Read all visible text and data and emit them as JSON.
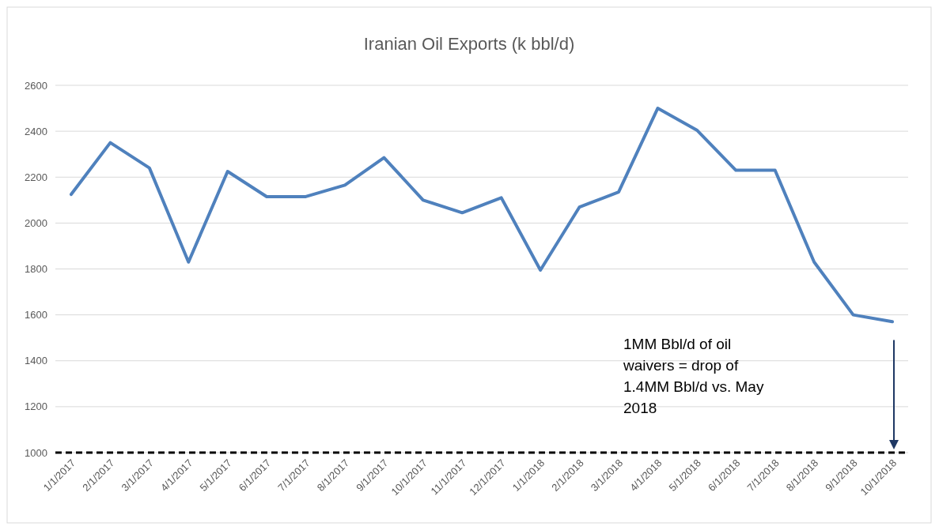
{
  "chart_data": {
    "type": "line",
    "title": "Iranian Oil Exports (k bbl/d)",
    "categories": [
      "1/1/2017",
      "2/1/2017",
      "3/1/2017",
      "4/1/2017",
      "5/1/2017",
      "6/1/2017",
      "7/1/2017",
      "8/1/2017",
      "9/1/2017",
      "10/1/2017",
      "11/1/2017",
      "12/1/2017",
      "1/1/2018",
      "2/1/2018",
      "3/1/2018",
      "4/1/2018",
      "5/1/2018",
      "6/1/2018",
      "7/1/2018",
      "8/1/2018",
      "9/1/2018",
      "10/1/2018"
    ],
    "series": [
      {
        "color": "#4f81bd",
        "values": [
          2125,
          2350,
          2240,
          1830,
          2225,
          2115,
          2115,
          2165,
          2285,
          2100,
          2045,
          2110,
          1795,
          2070,
          2135,
          2500,
          2405,
          2230,
          2230,
          1830,
          1600,
          1570
        ]
      }
    ],
    "ylim": [
      1000,
      2600
    ],
    "yticks": [
      1000,
      1200,
      1400,
      1600,
      1800,
      2000,
      2200,
      2400,
      2600
    ],
    "grid": "y",
    "marker": "none",
    "line_style": "solid",
    "ref_lines": [
      {
        "axis": "y",
        "value": 1000,
        "color": "#000000",
        "line_style": "dashed"
      }
    ],
    "annotations": [
      "1MM Bbl/d of oil waivers = drop of 1.4MM Bbl/d vs. May 2018"
    ]
  }
}
